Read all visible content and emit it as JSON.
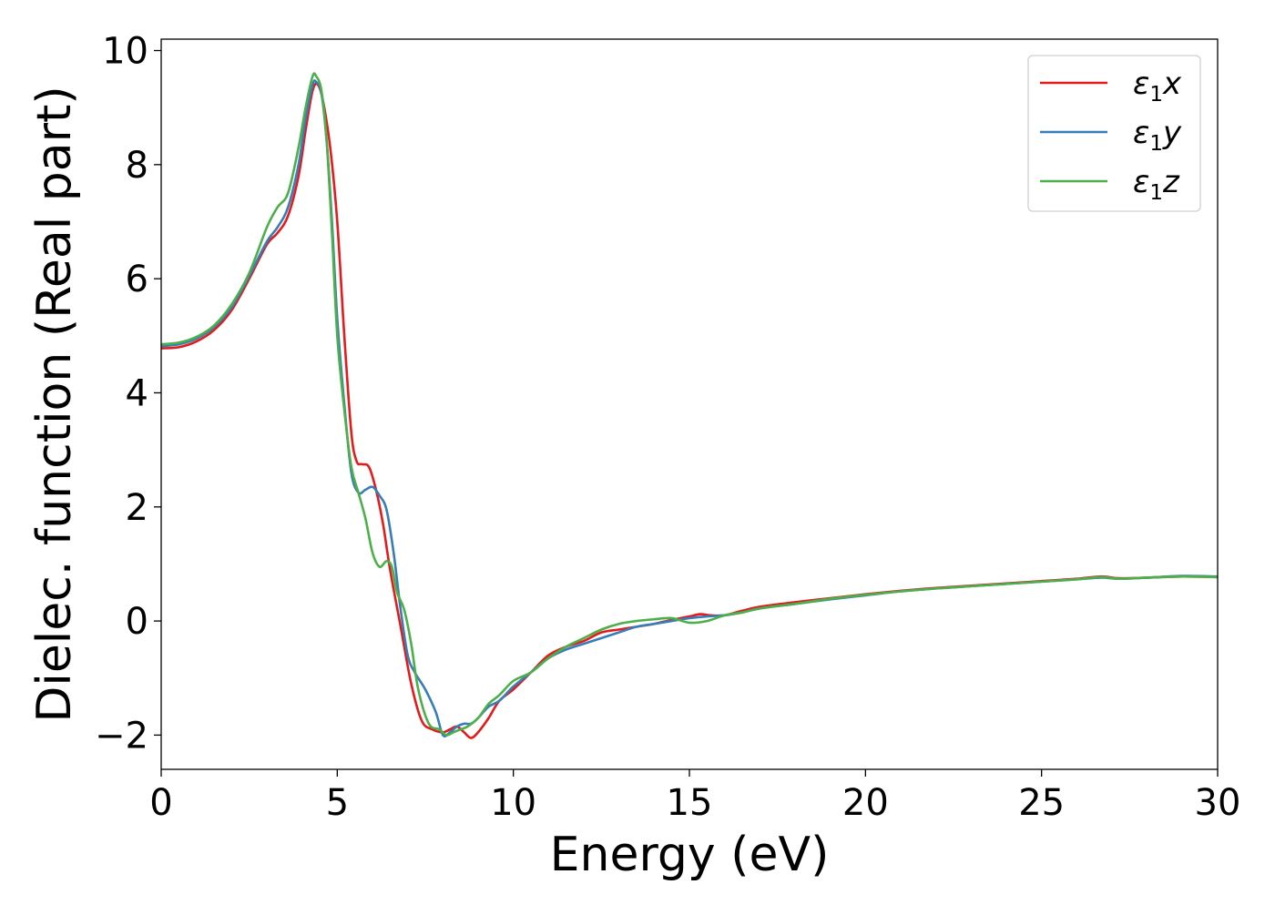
{
  "chart_data": {
    "type": "line",
    "title": "",
    "xlabel": "Energy (eV)",
    "ylabel": "Dielec. function (Real part)",
    "xlim": [
      0,
      30
    ],
    "ylim": [
      -2.6,
      10.2
    ],
    "xticks": [
      0,
      5,
      10,
      15,
      20,
      25,
      30
    ],
    "xtick_labels": [
      "0",
      "5",
      "10",
      "15",
      "20",
      "25",
      "30"
    ],
    "yticks": [
      -2,
      0,
      2,
      4,
      6,
      8,
      10
    ],
    "ytick_labels": [
      "−2",
      "0",
      "2",
      "4",
      "6",
      "8",
      "10"
    ],
    "grid": false,
    "legend_position": "top-right",
    "series": [
      {
        "name": "ε1x",
        "name_base": "ε",
        "name_sub": "1",
        "name_suffix": "x",
        "color": "#e41a1c",
        "x": [
          0,
          0.5,
          1,
          1.5,
          2,
          2.5,
          3,
          3.3,
          3.6,
          3.9,
          4.1,
          4.3,
          4.45,
          4.6,
          4.8,
          5,
          5.2,
          5.4,
          5.55,
          5.7,
          5.9,
          6.1,
          6.3,
          6.5,
          6.8,
          7.1,
          7.4,
          7.7,
          8,
          8.2,
          8.4,
          8.6,
          8.8,
          9,
          9.3,
          9.6,
          10,
          10.5,
          11,
          11.5,
          12,
          12.5,
          13,
          13.5,
          14,
          14.5,
          15,
          15.3,
          15.6,
          16,
          16.5,
          17,
          18,
          19,
          20,
          21,
          22,
          23,
          24,
          25,
          26,
          26.7,
          27.2,
          28,
          29,
          30
        ],
        "y": [
          4.78,
          4.8,
          4.9,
          5.1,
          5.45,
          6.0,
          6.6,
          6.8,
          7.1,
          7.8,
          8.6,
          9.3,
          9.4,
          9.1,
          8.3,
          7.0,
          5.0,
          3.3,
          2.8,
          2.75,
          2.7,
          2.3,
          1.7,
          0.9,
          -0.1,
          -1.1,
          -1.75,
          -1.9,
          -1.95,
          -1.9,
          -1.85,
          -1.95,
          -2.05,
          -1.95,
          -1.7,
          -1.4,
          -1.2,
          -0.9,
          -0.6,
          -0.45,
          -0.35,
          -0.2,
          -0.15,
          -0.1,
          -0.05,
          0.02,
          0.08,
          0.12,
          0.1,
          0.1,
          0.18,
          0.25,
          0.33,
          0.4,
          0.47,
          0.53,
          0.58,
          0.62,
          0.66,
          0.7,
          0.74,
          0.78,
          0.75,
          0.76,
          0.78,
          0.77
        ]
      },
      {
        "name": "ε1y",
        "name_base": "ε",
        "name_sub": "1",
        "name_suffix": "y",
        "color": "#377eb8",
        "x": [
          0,
          0.5,
          1,
          1.5,
          2,
          2.5,
          3,
          3.3,
          3.6,
          3.9,
          4.1,
          4.3,
          4.4,
          4.55,
          4.7,
          4.85,
          5,
          5.2,
          5.4,
          5.6,
          5.8,
          6,
          6.2,
          6.4,
          6.6,
          6.8,
          7,
          7.2,
          7.5,
          7.8,
          8,
          8.2,
          8.4,
          8.6,
          8.8,
          9,
          9.3,
          9.6,
          10,
          10.5,
          11,
          11.5,
          12,
          12.5,
          13,
          13.5,
          14,
          14.5,
          15,
          15.5,
          16,
          16.5,
          17,
          18,
          19,
          20,
          21,
          22,
          23,
          24,
          25,
          26,
          26.7,
          27.2,
          28,
          29,
          30
        ],
        "y": [
          4.82,
          4.85,
          4.95,
          5.15,
          5.5,
          6.05,
          6.65,
          6.9,
          7.25,
          8.0,
          8.8,
          9.4,
          9.45,
          9.25,
          8.4,
          7.0,
          5.3,
          3.8,
          2.6,
          2.25,
          2.3,
          2.35,
          2.2,
          1.95,
          1.2,
          0.2,
          -0.6,
          -0.9,
          -1.2,
          -1.6,
          -2.0,
          -1.95,
          -1.85,
          -1.8,
          -1.8,
          -1.7,
          -1.5,
          -1.4,
          -1.15,
          -0.9,
          -0.65,
          -0.5,
          -0.4,
          -0.3,
          -0.2,
          -0.1,
          -0.05,
          0.0,
          0.05,
          0.08,
          0.1,
          0.15,
          0.22,
          0.3,
          0.38,
          0.45,
          0.52,
          0.57,
          0.61,
          0.65,
          0.69,
          0.73,
          0.76,
          0.74,
          0.76,
          0.79,
          0.78
        ]
      },
      {
        "name": "ε1z",
        "name_base": "ε",
        "name_sub": "1",
        "name_suffix": "z",
        "color": "#4daf4a",
        "x": [
          0,
          0.5,
          1,
          1.5,
          2,
          2.5,
          3,
          3.3,
          3.6,
          3.9,
          4.1,
          4.3,
          4.4,
          4.55,
          4.7,
          4.85,
          5,
          5.2,
          5.4,
          5.6,
          5.8,
          6,
          6.2,
          6.4,
          6.55,
          6.7,
          6.9,
          7.1,
          7.3,
          7.6,
          7.9,
          8.1,
          8.3,
          8.5,
          8.7,
          9,
          9.3,
          9.6,
          10,
          10.5,
          11,
          11.5,
          12,
          12.5,
          13,
          13.5,
          14,
          14.5,
          15,
          15.5,
          16,
          16.5,
          17,
          18,
          19,
          20,
          21,
          22,
          23,
          24,
          25,
          26,
          26.7,
          27.2,
          28,
          29,
          30
        ],
        "y": [
          4.85,
          4.88,
          4.98,
          5.18,
          5.55,
          6.1,
          6.9,
          7.25,
          7.5,
          8.3,
          9.0,
          9.55,
          9.55,
          9.3,
          8.4,
          6.8,
          5.0,
          3.7,
          2.7,
          2.25,
          1.8,
          1.2,
          0.95,
          1.05,
          0.95,
          0.5,
          0.2,
          -0.4,
          -1.2,
          -1.8,
          -1.9,
          -2.0,
          -1.95,
          -1.9,
          -1.85,
          -1.7,
          -1.45,
          -1.3,
          -1.05,
          -0.9,
          -0.65,
          -0.45,
          -0.3,
          -0.15,
          -0.05,
          0.0,
          0.03,
          0.05,
          -0.03,
          0.0,
          0.1,
          0.15,
          0.22,
          0.3,
          0.39,
          0.46,
          0.52,
          0.57,
          0.61,
          0.65,
          0.69,
          0.73,
          0.77,
          0.74,
          0.76,
          0.78,
          0.77
        ]
      }
    ]
  }
}
